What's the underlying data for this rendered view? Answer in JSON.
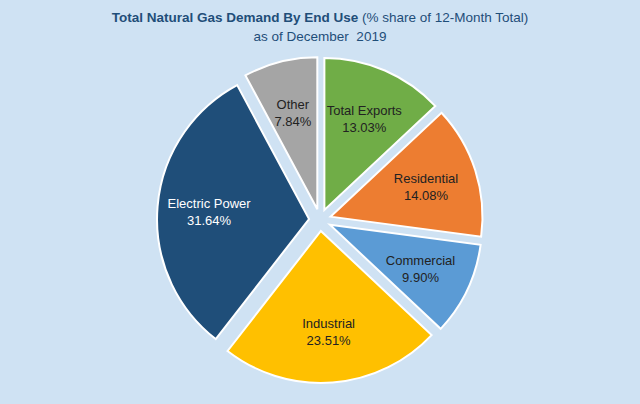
{
  "chart_data": {
    "type": "pie",
    "title": "Total Natural Gas Demand By End Use (% share of 12-Month Total)",
    "subtitle": "as of December  2019",
    "categories": [
      "Total Exports",
      "Residential",
      "Commercial",
      "Industrial",
      "Electric Power",
      "Other"
    ],
    "values": [
      13.03,
      14.08,
      9.9,
      23.51,
      31.64,
      7.84
    ],
    "value_labels": [
      "13.03%",
      "14.08%",
      "9.90%",
      "23.51%",
      "31.64%",
      "7.84%"
    ],
    "colors": [
      "#70ad47",
      "#ed7d31",
      "#5b9bd5",
      "#ffc000",
      "#1f4e79",
      "#a5a5a5"
    ],
    "data_labels": true
  }
}
